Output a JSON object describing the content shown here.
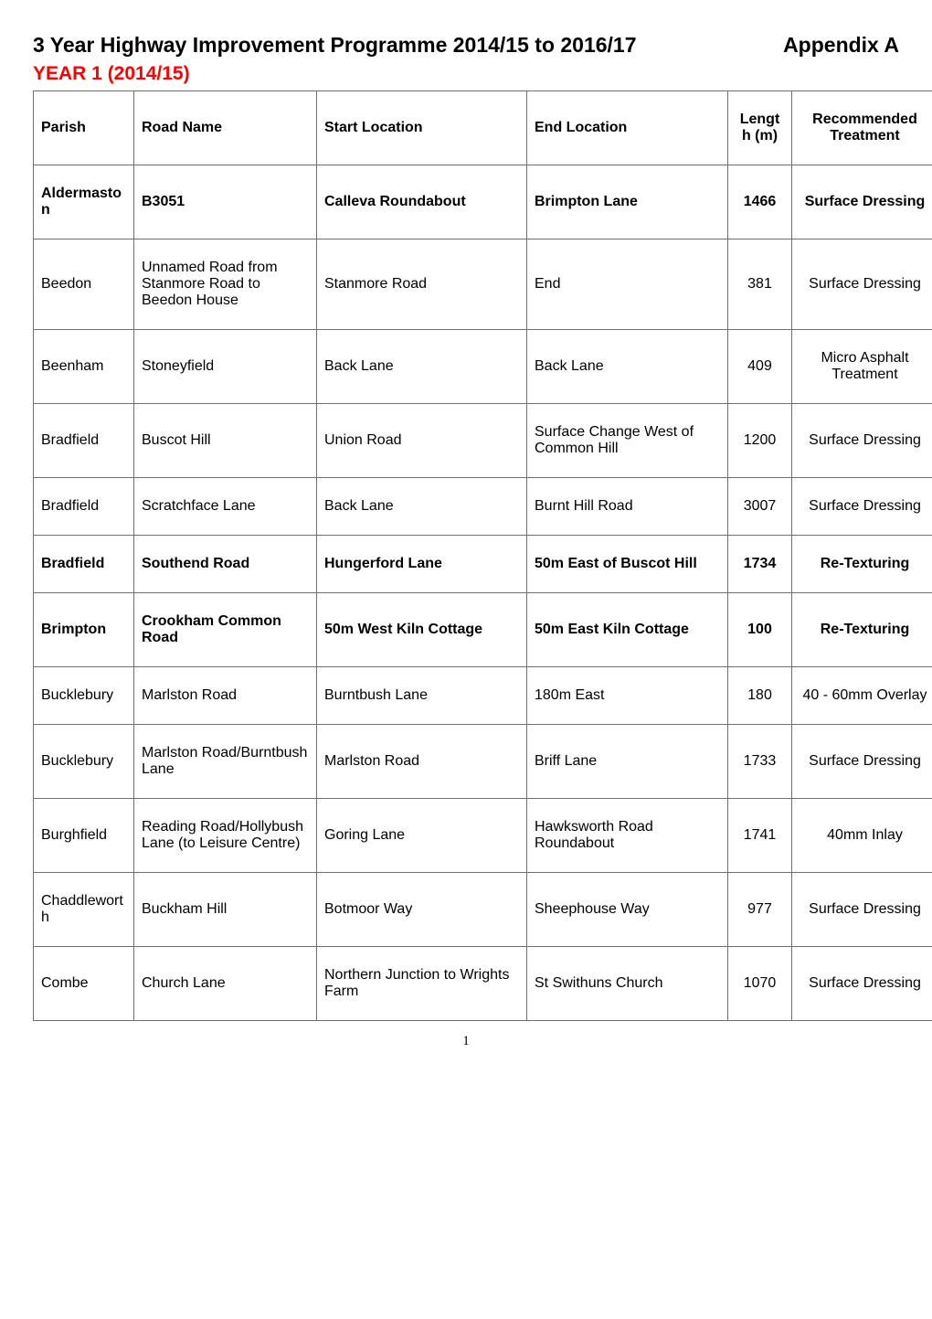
{
  "header": {
    "title": "3 Year Highway Improvement Programme 2014/15 to 2016/17",
    "appendix": "Appendix A",
    "yearLine": "YEAR 1 (2014/15)",
    "yearColor": "#ff0000"
  },
  "table": {
    "columns": [
      {
        "key": "parish",
        "label": "Parish",
        "align": "left",
        "widthClass": "c-parish"
      },
      {
        "key": "road",
        "label": "Road Name",
        "align": "left",
        "widthClass": "c-road"
      },
      {
        "key": "start",
        "label": "Start Location",
        "align": "left",
        "widthClass": "c-start"
      },
      {
        "key": "end",
        "label": "End Location",
        "align": "left",
        "widthClass": "c-end"
      },
      {
        "key": "length",
        "label": "Length (m)",
        "align": "center",
        "widthClass": "c-len"
      },
      {
        "key": "treat",
        "label": "Recommended Treatment",
        "align": "center",
        "widthClass": "c-treat"
      }
    ],
    "rows": [
      {
        "bold": true,
        "parish": "Aldermaston",
        "road": "B3051",
        "start": "Calleva Roundabout",
        "end": "Brimpton Lane",
        "length": "1466",
        "treat": "Surface Dressing"
      },
      {
        "bold": false,
        "parish": "Beedon",
        "road": "Unnamed Road from Stanmore Road to Beedon House",
        "start": "Stanmore Road",
        "end": "End",
        "length": "381",
        "treat": "Surface Dressing"
      },
      {
        "bold": false,
        "parish": "Beenham",
        "road": "Stoneyfield",
        "start": "Back Lane",
        "end": "Back Lane",
        "length": "409",
        "treat": "Micro Asphalt Treatment"
      },
      {
        "bold": false,
        "parish": "Bradfield",
        "road": "Buscot Hill",
        "start": "Union Road",
        "end": "Surface Change West of Common Hill",
        "length": "1200",
        "treat": "Surface Dressing"
      },
      {
        "bold": false,
        "parish": "Bradfield",
        "road": "Scratchface Lane",
        "start": "Back Lane",
        "end": "Burnt Hill Road",
        "length": "3007",
        "treat": "Surface Dressing"
      },
      {
        "bold": true,
        "parish": "Bradfield",
        "road": "Southend Road",
        "start": "Hungerford Lane",
        "end": "50m East of Buscot Hill",
        "length": "1734",
        "treat": "Re-Texturing"
      },
      {
        "bold": true,
        "parish": "Brimpton",
        "road": "Crookham Common Road",
        "start": "50m West Kiln Cottage",
        "end": "50m East Kiln Cottage",
        "length": "100",
        "treat": "Re-Texturing"
      },
      {
        "bold": false,
        "parish": "Bucklebury",
        "road": "Marlston Road",
        "start": "Burntbush Lane",
        "end": "180m East",
        "length": "180",
        "treat": "40 - 60mm Overlay"
      },
      {
        "bold": false,
        "parish": "Bucklebury",
        "road": "Marlston Road/Burntbush Lane",
        "start": "Marlston Road",
        "end": "Briff Lane",
        "length": "1733",
        "treat": "Surface Dressing"
      },
      {
        "bold": false,
        "parish": "Burghfield",
        "road": "Reading Road/Hollybush Lane (to  Leisure Centre)",
        "start": "Goring Lane",
        "end": "Hawksworth Road Roundabout",
        "length": "1741",
        "treat": "40mm Inlay"
      },
      {
        "bold": false,
        "parish": "Chaddleworth",
        "road": "Buckham Hill",
        "start": "Botmoor Way",
        "end": "Sheephouse Way",
        "length": "977",
        "treat": "Surface Dressing"
      },
      {
        "bold": false,
        "parish": "Combe",
        "road": "Church Lane",
        "start": "Northern Junction to Wrights Farm",
        "end": "St Swithuns Church",
        "length": "1070",
        "treat": "Surface Dressing"
      }
    ]
  },
  "footer": {
    "pageNumber": "1"
  },
  "style": {
    "borderColor": "#707070",
    "headerFontSize": 16,
    "cellFontSize": 16
  }
}
